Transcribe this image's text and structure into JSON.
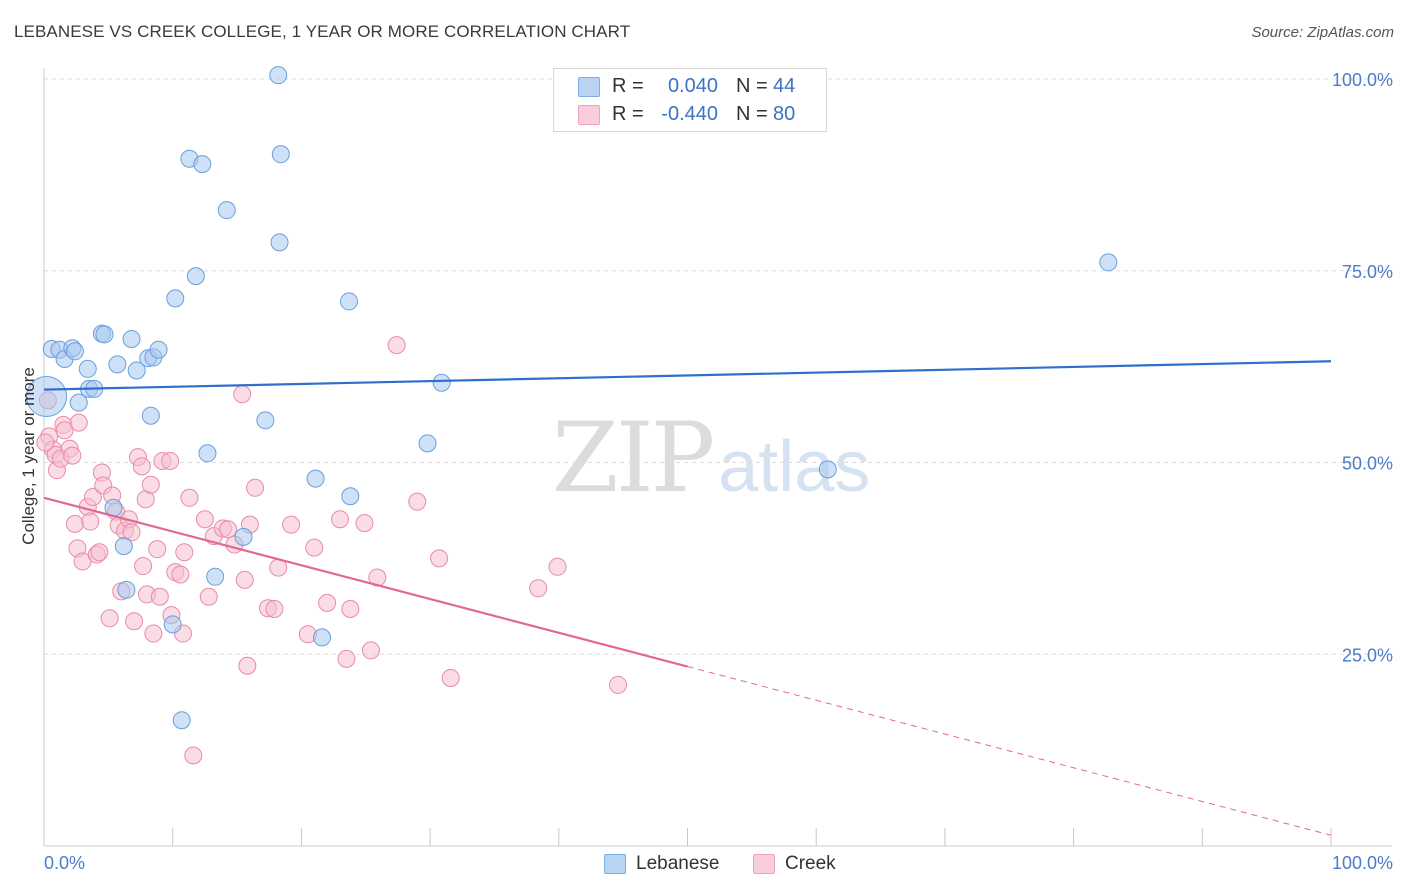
{
  "title": "LEBANESE VS CREEK COLLEGE, 1 YEAR OR MORE CORRELATION CHART",
  "source": "Source: ZipAtlas.com",
  "watermark": {
    "zip": "ZIP",
    "atlas": "atlas"
  },
  "legend_top": {
    "rows": [
      {
        "r_key": "R =",
        "r_value": "0.040",
        "n_key": "N =",
        "n_value": "44",
        "color": "#7aaee8",
        "fill": "#b9d3f3"
      },
      {
        "r_key": "R =",
        "r_value": "-0.440",
        "n_key": "N =",
        "n_value": "80",
        "color": "#f0a3bd",
        "fill": "#f9cdd9"
      }
    ]
  },
  "legend_bottom": {
    "items": [
      "Lebanese",
      "Creek"
    ]
  },
  "colors": {
    "lebanese_fill": "#a8c8ef",
    "lebanese_stroke": "#6a9fdc",
    "lebanese_line": "#2f6fcf",
    "creek_fill": "#f6bfd0",
    "creek_stroke": "#e98aa9",
    "creek_line": "#e06892",
    "grid": "#dddddd",
    "tick_text": "#4a7cc7"
  },
  "chart_data": {
    "type": "scatter",
    "title": "LEBANESE VS CREEK COLLEGE, 1 YEAR OR MORE CORRELATION CHART",
    "xlabel": "",
    "ylabel": "College, 1 year or more",
    "xlim": [
      0,
      100
    ],
    "ylim": [
      0,
      100
    ],
    "x_tick_labels": [
      "0.0%",
      "100.0%"
    ],
    "y_tick_labels": [
      "25.0%",
      "50.0%",
      "75.0%",
      "100.0%"
    ],
    "y_ticks": [
      25,
      50,
      75,
      100
    ],
    "grid": true,
    "legend_position": "top-center",
    "series": [
      {
        "name": "Lebanese",
        "R": 0.04,
        "N": 44,
        "trend": {
          "x": [
            0,
            100
          ],
          "y": [
            59.5,
            63.2
          ],
          "dashed_from": null
        },
        "points": [
          [
            0.2,
            58.6,
            "big"
          ],
          [
            0.6,
            64.8
          ],
          [
            1.2,
            64.7
          ],
          [
            1.6,
            63.5
          ],
          [
            2.2,
            64.9
          ],
          [
            2.4,
            64.5
          ],
          [
            2.7,
            57.8
          ],
          [
            3.5,
            59.6
          ],
          [
            3.4,
            62.2
          ],
          [
            3.9,
            59.6
          ],
          [
            4.5,
            66.8
          ],
          [
            4.7,
            66.7
          ],
          [
            5.7,
            62.8
          ],
          [
            5.4,
            44.1
          ],
          [
            6.2,
            39.1
          ],
          [
            6.4,
            33.4
          ],
          [
            6.8,
            66.1
          ],
          [
            7.2,
            62.0
          ],
          [
            8.1,
            63.6
          ],
          [
            8.3,
            56.1
          ],
          [
            8.5,
            63.7
          ],
          [
            8.9,
            64.7
          ],
          [
            10.0,
            28.9
          ],
          [
            10.2,
            71.4
          ],
          [
            10.7,
            16.4
          ],
          [
            11.3,
            89.6
          ],
          [
            11.8,
            74.3
          ],
          [
            12.3,
            88.9
          ],
          [
            12.7,
            51.2
          ],
          [
            13.3,
            35.1
          ],
          [
            14.2,
            82.9
          ],
          [
            15.5,
            40.3
          ],
          [
            17.2,
            55.5
          ],
          [
            18.2,
            100.5
          ],
          [
            18.3,
            78.7
          ],
          [
            18.4,
            90.2
          ],
          [
            21.1,
            47.9
          ],
          [
            21.6,
            27.2
          ],
          [
            23.7,
            71.0
          ],
          [
            23.8,
            45.6
          ],
          [
            29.8,
            52.5
          ],
          [
            30.9,
            60.4
          ],
          [
            60.9,
            49.1
          ],
          [
            82.7,
            76.1
          ]
        ]
      },
      {
        "name": "Creek",
        "R": -0.44,
        "N": 80,
        "trend": {
          "x": [
            0,
            100
          ],
          "y": [
            45.4,
            1.4
          ],
          "dashed_from": 50
        },
        "points": [
          [
            0.3,
            58.1
          ],
          [
            0.4,
            53.4
          ],
          [
            0.7,
            51.7
          ],
          [
            0.9,
            51.0
          ],
          [
            1.0,
            49.0
          ],
          [
            1.3,
            50.5
          ],
          [
            1.5,
            54.9
          ],
          [
            1.6,
            54.2
          ],
          [
            2.0,
            51.8
          ],
          [
            2.2,
            50.9
          ],
          [
            2.4,
            42.0
          ],
          [
            2.6,
            38.8
          ],
          [
            2.7,
            55.2
          ],
          [
            3.0,
            37.1
          ],
          [
            3.4,
            44.2
          ],
          [
            3.6,
            42.3
          ],
          [
            3.8,
            45.5
          ],
          [
            4.1,
            38.0
          ],
          [
            4.3,
            38.3
          ],
          [
            4.5,
            48.7
          ],
          [
            4.6,
            47.0
          ],
          [
            5.1,
            29.7
          ],
          [
            5.3,
            45.7
          ],
          [
            5.6,
            43.6
          ],
          [
            5.8,
            41.8
          ],
          [
            6.0,
            33.2
          ],
          [
            6.3,
            41.1
          ],
          [
            6.6,
            42.6
          ],
          [
            6.8,
            40.9
          ],
          [
            7.0,
            29.3
          ],
          [
            7.3,
            50.7
          ],
          [
            7.6,
            49.5
          ],
          [
            7.7,
            36.5
          ],
          [
            7.9,
            45.2
          ],
          [
            8.0,
            32.8
          ],
          [
            8.3,
            47.1
          ],
          [
            8.5,
            27.7
          ],
          [
            8.8,
            38.7
          ],
          [
            9.0,
            32.5
          ],
          [
            9.2,
            50.2
          ],
          [
            9.8,
            50.2
          ],
          [
            9.9,
            30.1
          ],
          [
            10.2,
            35.7
          ],
          [
            10.6,
            35.4
          ],
          [
            10.8,
            27.7
          ],
          [
            10.9,
            38.3
          ],
          [
            11.3,
            45.4
          ],
          [
            11.6,
            11.8
          ],
          [
            12.5,
            42.6
          ],
          [
            12.8,
            32.5
          ],
          [
            13.2,
            40.4
          ],
          [
            13.9,
            41.4
          ],
          [
            14.3,
            41.3
          ],
          [
            14.8,
            39.3
          ],
          [
            15.4,
            58.9
          ],
          [
            15.6,
            34.7
          ],
          [
            15.8,
            23.5
          ],
          [
            16.0,
            41.9
          ],
          [
            16.4,
            46.7
          ],
          [
            17.4,
            31.0
          ],
          [
            17.9,
            30.9
          ],
          [
            18.2,
            36.3
          ],
          [
            19.2,
            41.9
          ],
          [
            20.5,
            27.6
          ],
          [
            21.0,
            38.9
          ],
          [
            22.0,
            31.7
          ],
          [
            23.0,
            42.6
          ],
          [
            23.5,
            24.4
          ],
          [
            23.8,
            30.9
          ],
          [
            24.9,
            42.1
          ],
          [
            25.4,
            25.5
          ],
          [
            25.9,
            35.0
          ],
          [
            27.4,
            65.3
          ],
          [
            29.0,
            44.9
          ],
          [
            30.7,
            37.5
          ],
          [
            31.6,
            21.9
          ],
          [
            38.4,
            33.6
          ],
          [
            39.9,
            36.4
          ],
          [
            44.6,
            21.0
          ],
          [
            0.1,
            52.6
          ]
        ]
      }
    ]
  }
}
